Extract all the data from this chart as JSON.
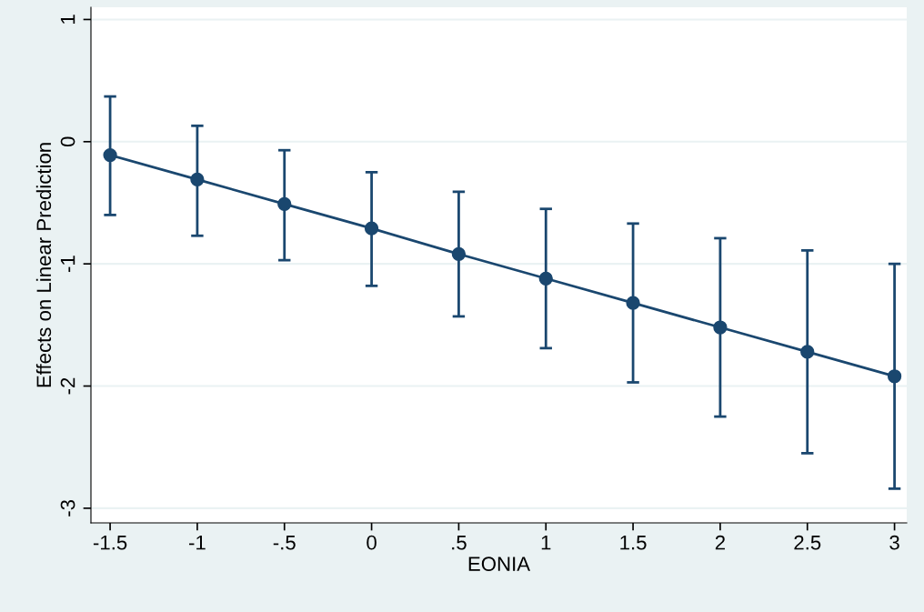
{
  "chart_data": {
    "type": "line",
    "xlabel": "EONIA",
    "ylabel": "Effects on Linear Prediction",
    "x": [
      -1.5,
      -1,
      -0.5,
      0,
      0.5,
      1,
      1.5,
      2,
      2.5,
      3
    ],
    "series": [
      {
        "color": "#1a476f",
        "values": [
          -0.11,
          -0.31,
          -0.51,
          -0.71,
          -0.92,
          -1.12,
          -1.32,
          -1.52,
          -1.72,
          -1.92
        ],
        "errors": [
          [
            -0.6,
            0.37
          ],
          [
            -0.77,
            0.13
          ],
          [
            -0.97,
            -0.07
          ],
          [
            -1.18,
            -0.25
          ],
          [
            -1.43,
            -0.41
          ],
          [
            -1.69,
            -0.55
          ],
          [
            -1.97,
            -0.67
          ],
          [
            -2.25,
            -0.79
          ],
          [
            -2.55,
            -0.89
          ],
          [
            -2.84,
            -1.0
          ]
        ]
      }
    ],
    "xlim": [
      -1.61,
      3.07
    ],
    "ylim": [
      -3.12,
      1.1
    ],
    "xticks": [
      {
        "value": -1.5,
        "label": "-1.5"
      },
      {
        "value": -1,
        "label": "-1"
      },
      {
        "value": -0.5,
        "label": "-.5"
      },
      0,
      {
        "value": 0.5,
        "label": ".5"
      },
      1,
      1.5,
      2,
      2.5,
      3
    ],
    "yticks": [
      -3,
      -2,
      -1,
      0,
      1
    ],
    "grid": "y",
    "marker": "circle",
    "line_style": "solid"
  }
}
